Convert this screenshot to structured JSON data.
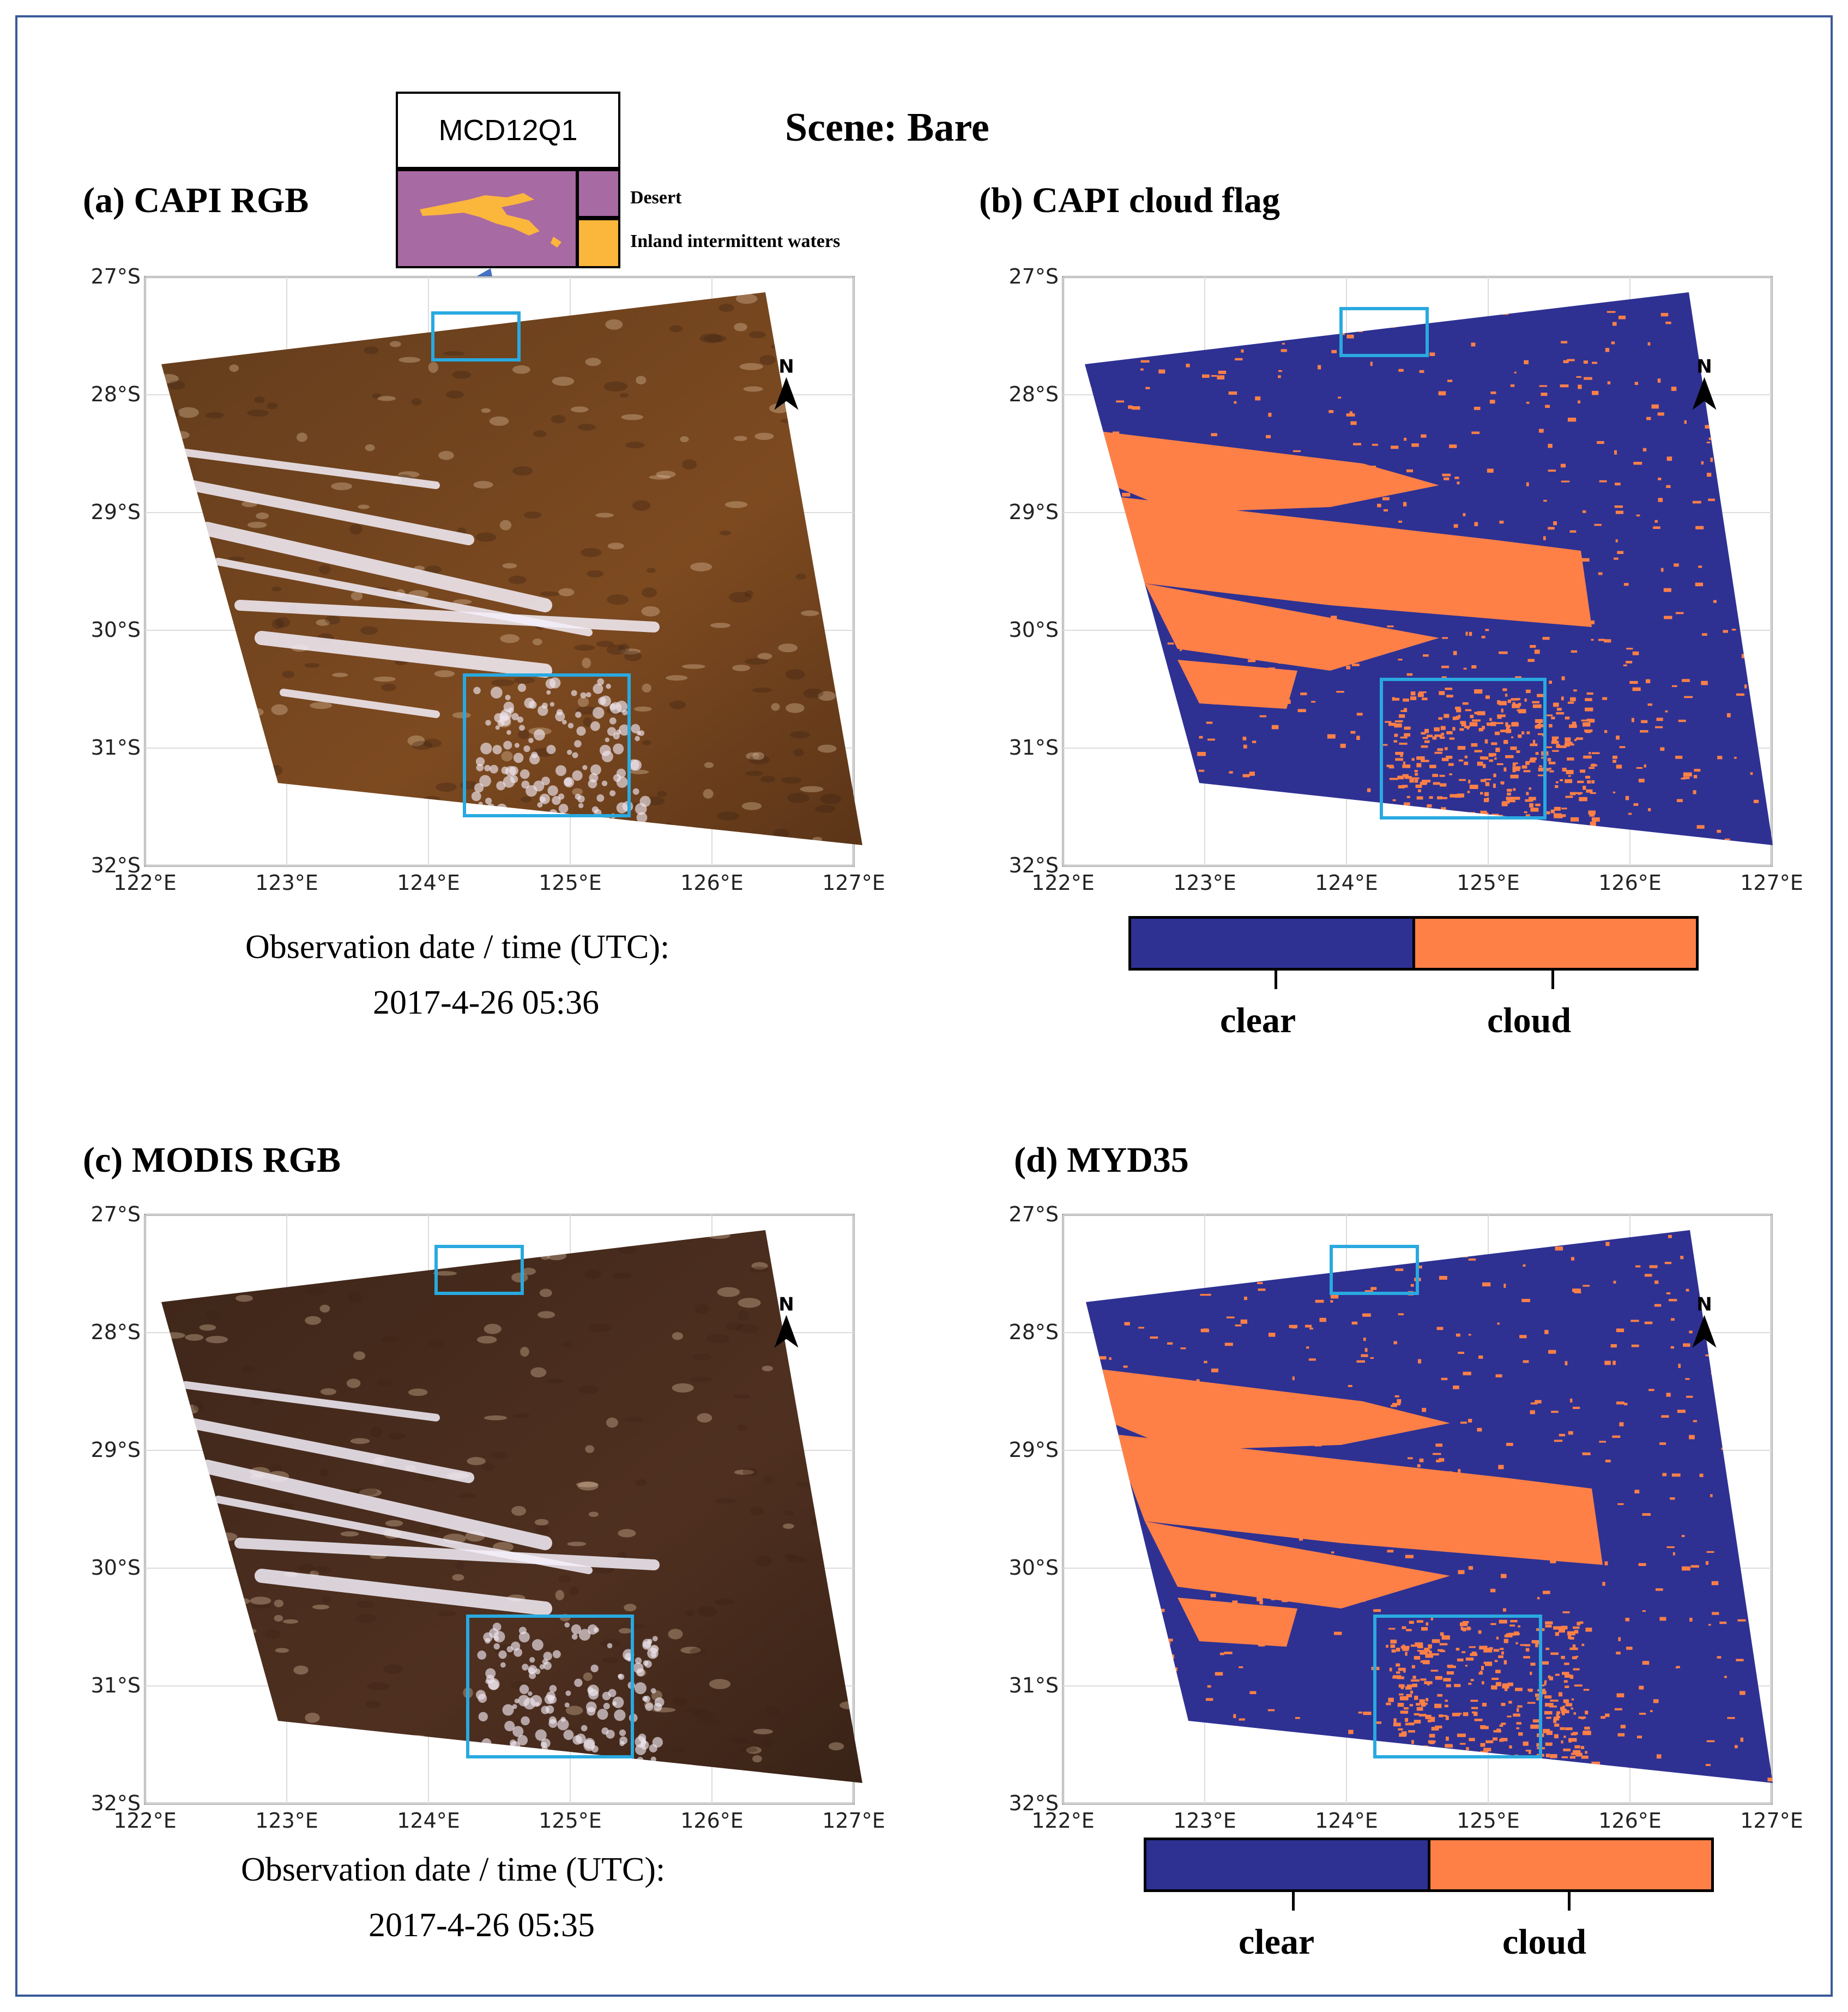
{
  "scene_title": "Scene: Bare",
  "inset": {
    "title": "MCD12Q1",
    "legend": [
      {
        "label": "Desert",
        "color": "#a86aa2"
      },
      {
        "label": "Inland intermittent waters",
        "color": "#fbb63c"
      }
    ]
  },
  "panels": [
    {
      "title": "(a) CAPI RGB",
      "type": "rgb",
      "obs_label": "Observation date / time (UTC):",
      "obs_value": "2017-4-26 05:36"
    },
    {
      "title": "(b) CAPI cloud flag",
      "type": "mask"
    },
    {
      "title": "(c) MODIS RGB",
      "type": "rgb",
      "obs_label": "Observation date / time (UTC):",
      "obs_value": "2017-4-26 05:35"
    },
    {
      "title": "(d) MYD35",
      "type": "mask"
    }
  ],
  "axes": {
    "lat_ticks": [
      "27°S",
      "28°S",
      "29°S",
      "30°S",
      "31°S",
      "32°S"
    ],
    "lon_ticks": [
      "122°E",
      "123°E",
      "124°E",
      "125°E",
      "126°E",
      "127°E"
    ],
    "north_label": "N"
  },
  "colorbar": {
    "items": [
      {
        "label": "clear",
        "color": "#2e3192"
      },
      {
        "label": "cloud",
        "color": "#ff8047"
      }
    ]
  },
  "colors": {
    "frame": "#3a5a99",
    "highlight_box": "#29a9e0",
    "clear": "#2e3192",
    "cloud": "#ff8047"
  }
}
